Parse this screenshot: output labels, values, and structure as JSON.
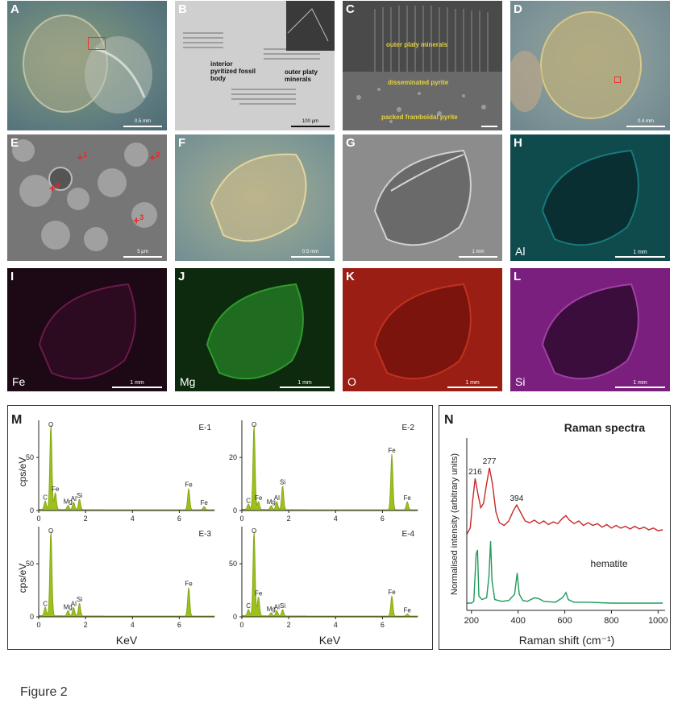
{
  "figure_caption": "Figure 2",
  "panels": {
    "A": {
      "label": "A",
      "scale": "0.5 mm"
    },
    "B": {
      "label": "B",
      "scale": "100 μm",
      "ann_interior": "interior pyritized fossil body",
      "ann_outer": "outer platy minerals"
    },
    "C": {
      "label": "C",
      "ann_outer": "outer platy minerals",
      "ann_diss": "disseminated pyrite",
      "ann_packed": "packed framboidal pyrite"
    },
    "D": {
      "label": "D",
      "scale": "0.4 mm"
    },
    "E": {
      "label": "E",
      "scale": "5 μm",
      "markers": [
        "1",
        "2",
        "3",
        "4"
      ]
    },
    "F": {
      "label": "F",
      "scale": "0.5 mm"
    },
    "G": {
      "label": "G",
      "scale": "1 mm"
    },
    "H": {
      "label": "H",
      "element": "Al",
      "scale": "1 mm"
    },
    "I": {
      "label": "I",
      "element": "Fe",
      "scale": "1 mm"
    },
    "J": {
      "label": "J",
      "element": "Mg",
      "scale": "1 mm"
    },
    "K": {
      "label": "K",
      "element": "O",
      "scale": "1 mm"
    },
    "L": {
      "label": "L",
      "element": "Si",
      "scale": "1 mm"
    }
  },
  "colors": {
    "eds_fill": "#9dc01c",
    "eds_stroke": "#7ea012",
    "raman_sample": "#c62828",
    "raman_ref": "#1f9a5a"
  },
  "chart_data": [
    {
      "type": "area",
      "panel_label": "M",
      "ylabel": "cps/eV",
      "xlabel": "KeV",
      "subplots": [
        {
          "name": "E-1",
          "xlim": [
            0,
            7.5
          ],
          "yticks": [
            0,
            50
          ],
          "ymax": 85,
          "xticks": [
            0,
            2,
            4,
            6
          ],
          "peaks": [
            {
              "label": "C",
              "x": 0.28,
              "y": 8
            },
            {
              "label": "O",
              "x": 0.52,
              "y": 80
            },
            {
              "label": "Fe",
              "x": 0.71,
              "y": 16
            },
            {
              "label": "Mg",
              "x": 1.25,
              "y": 4
            },
            {
              "label": "Al",
              "x": 1.49,
              "y": 7
            },
            {
              "label": "Si",
              "x": 1.74,
              "y": 10
            },
            {
              "label": "Fe",
              "x": 6.4,
              "y": 20
            },
            {
              "label": "Fe",
              "x": 7.06,
              "y": 3
            }
          ]
        },
        {
          "name": "E-2",
          "xlim": [
            0,
            7.5
          ],
          "yticks": [
            0,
            20
          ],
          "ymax": 34,
          "xticks": [
            0,
            2,
            4,
            6
          ],
          "peaks": [
            {
              "label": "C",
              "x": 0.28,
              "y": 2
            },
            {
              "label": "O",
              "x": 0.52,
              "y": 32
            },
            {
              "label": "Fe",
              "x": 0.71,
              "y": 3
            },
            {
              "label": "Mg",
              "x": 1.25,
              "y": 1.5
            },
            {
              "label": "Al",
              "x": 1.49,
              "y": 3
            },
            {
              "label": "Si",
              "x": 1.74,
              "y": 9
            },
            {
              "label": "Fe",
              "x": 6.4,
              "y": 21
            },
            {
              "label": "Fe",
              "x": 7.06,
              "y": 3
            }
          ]
        },
        {
          "name": "E-3",
          "xlim": [
            0,
            7.5
          ],
          "yticks": [
            0,
            50
          ],
          "ymax": 85,
          "xticks": [
            0,
            2,
            4,
            6
          ],
          "peaks": [
            {
              "label": "C",
              "x": 0.28,
              "y": 8
            },
            {
              "label": "O",
              "x": 0.52,
              "y": 80
            },
            {
              "label": "Mg",
              "x": 1.25,
              "y": 5
            },
            {
              "label": "Al",
              "x": 1.49,
              "y": 8
            },
            {
              "label": "Si",
              "x": 1.74,
              "y": 12
            },
            {
              "label": "Fe",
              "x": 6.4,
              "y": 27
            }
          ]
        },
        {
          "name": "E-4",
          "xlim": [
            0,
            7.5
          ],
          "yticks": [
            0,
            50
          ],
          "ymax": 85,
          "xticks": [
            0,
            2,
            4,
            6
          ],
          "peaks": [
            {
              "label": "C",
              "x": 0.28,
              "y": 6
            },
            {
              "label": "O",
              "x": 0.52,
              "y": 80
            },
            {
              "label": "Fe",
              "x": 0.71,
              "y": 18
            },
            {
              "label": "Mg",
              "x": 1.25,
              "y": 3
            },
            {
              "label": "Al",
              "x": 1.49,
              "y": 5
            },
            {
              "label": "Si",
              "x": 1.74,
              "y": 6
            },
            {
              "label": "Fe",
              "x": 6.4,
              "y": 19
            },
            {
              "label": "Fe",
              "x": 7.06,
              "y": 2
            }
          ]
        }
      ]
    },
    {
      "type": "line",
      "panel_label": "N",
      "title": "Raman spectra",
      "xlabel": "Raman shift (cm⁻¹)",
      "ylabel": "Normalised intensity (arbitrary units)",
      "xlim": [
        180,
        1030
      ],
      "xticks": [
        200,
        400,
        600,
        800,
        1000
      ],
      "series": [
        {
          "name": "",
          "peaks_labeled": [
            {
              "label": "216",
              "x": 216
            },
            {
              "label": "277",
              "x": 277
            },
            {
              "label": "394",
              "x": 394
            }
          ],
          "points": [
            [
              180,
              0.05
            ],
            [
              195,
              0.12
            ],
            [
              205,
              0.42
            ],
            [
              216,
              0.68
            ],
            [
              228,
              0.5
            ],
            [
              240,
              0.35
            ],
            [
              252,
              0.4
            ],
            [
              265,
              0.62
            ],
            [
              277,
              0.8
            ],
            [
              290,
              0.62
            ],
            [
              305,
              0.3
            ],
            [
              320,
              0.18
            ],
            [
              340,
              0.15
            ],
            [
              360,
              0.2
            ],
            [
              380,
              0.32
            ],
            [
              394,
              0.38
            ],
            [
              410,
              0.3
            ],
            [
              430,
              0.2
            ],
            [
              450,
              0.18
            ],
            [
              470,
              0.21
            ],
            [
              490,
              0.17
            ],
            [
              510,
              0.2
            ],
            [
              530,
              0.16
            ],
            [
              550,
              0.19
            ],
            [
              570,
              0.17
            ],
            [
              590,
              0.23
            ],
            [
              605,
              0.26
            ],
            [
              620,
              0.21
            ],
            [
              640,
              0.17
            ],
            [
              660,
              0.2
            ],
            [
              680,
              0.15
            ],
            [
              700,
              0.18
            ],
            [
              720,
              0.15
            ],
            [
              740,
              0.17
            ],
            [
              760,
              0.13
            ],
            [
              780,
              0.16
            ],
            [
              800,
              0.12
            ],
            [
              820,
              0.15
            ],
            [
              840,
              0.12
            ],
            [
              860,
              0.14
            ],
            [
              880,
              0.11
            ],
            [
              900,
              0.14
            ],
            [
              920,
              0.11
            ],
            [
              940,
              0.13
            ],
            [
              960,
              0.1
            ],
            [
              980,
              0.12
            ],
            [
              1000,
              0.09
            ],
            [
              1020,
              0.1
            ]
          ]
        },
        {
          "name": "hematite",
          "points": [
            [
              180,
              0.0
            ],
            [
              200,
              0.0
            ],
            [
              210,
              0.02
            ],
            [
              220,
              0.55
            ],
            [
              226,
              0.6
            ],
            [
              232,
              0.08
            ],
            [
              245,
              0.04
            ],
            [
              265,
              0.06
            ],
            [
              275,
              0.3
            ],
            [
              282,
              0.7
            ],
            [
              288,
              0.25
            ],
            [
              300,
              0.04
            ],
            [
              330,
              0.02
            ],
            [
              360,
              0.03
            ],
            [
              385,
              0.1
            ],
            [
              396,
              0.34
            ],
            [
              405,
              0.1
            ],
            [
              420,
              0.03
            ],
            [
              440,
              0.02
            ],
            [
              470,
              0.06
            ],
            [
              490,
              0.05
            ],
            [
              510,
              0.02
            ],
            [
              560,
              0.01
            ],
            [
              590,
              0.06
            ],
            [
              605,
              0.12
            ],
            [
              615,
              0.04
            ],
            [
              640,
              0.01
            ],
            [
              700,
              0.01
            ],
            [
              800,
              0.0
            ],
            [
              900,
              0.0
            ],
            [
              1020,
              0.0
            ]
          ]
        }
      ]
    }
  ]
}
